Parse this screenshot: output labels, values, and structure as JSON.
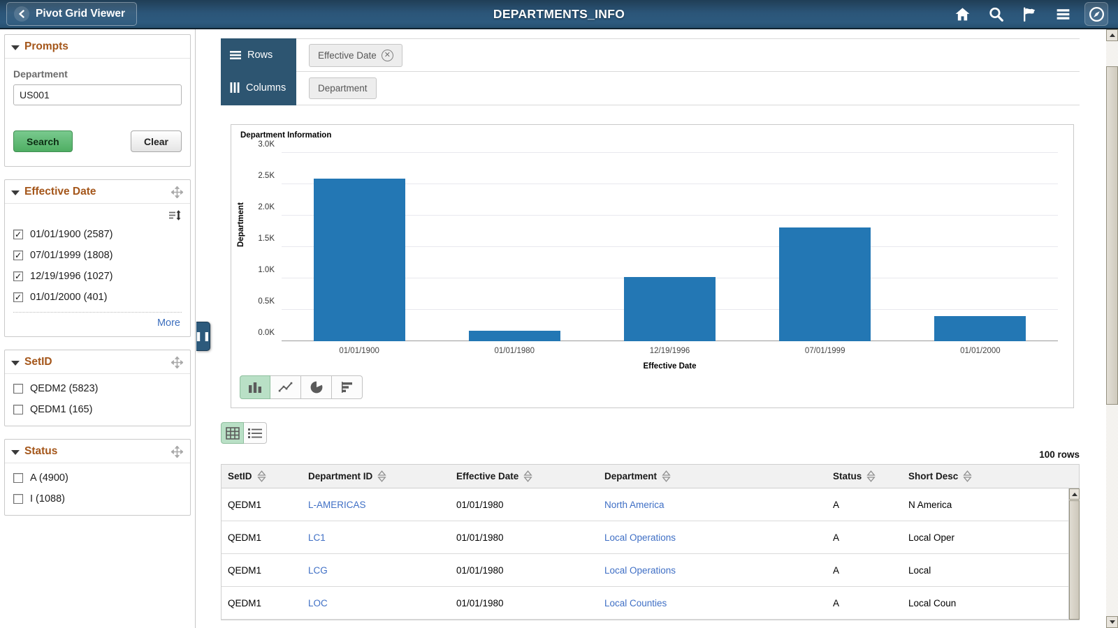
{
  "colors": {
    "bar": "#2377b4",
    "facet_title": "#a4561a",
    "link": "#3f6fc5",
    "header_bg": "#2b5578",
    "active_toggle": "#b9e0c6"
  },
  "header": {
    "back_label": "Pivot Grid Viewer",
    "title": "DEPARTMENTS_INFO",
    "icons": [
      "home-icon",
      "search-icon",
      "flag-icon",
      "menu-icon",
      "navbar-compass-icon"
    ]
  },
  "prompts": {
    "title": "Prompts",
    "field_label": "Department",
    "field_value": "US001",
    "search_label": "Search",
    "clear_label": "Clear"
  },
  "facets": [
    {
      "title": "Effective Date",
      "has_sort_icon": true,
      "items": [
        {
          "label": "01/01/1900 (2587)",
          "checked": true
        },
        {
          "label": "07/01/1999 (1808)",
          "checked": true
        },
        {
          "label": "12/19/1996 (1027)",
          "checked": true
        },
        {
          "label": "01/01/2000 (401)",
          "checked": true
        }
      ],
      "more_label": "More"
    },
    {
      "title": "SetID",
      "has_sort_icon": false,
      "items": [
        {
          "label": "QEDM2 (5823)",
          "checked": false
        },
        {
          "label": "QEDM1 (165)",
          "checked": false
        }
      ],
      "more_label": null
    },
    {
      "title": "Status",
      "has_sort_icon": false,
      "items": [
        {
          "label": "A (4900)",
          "checked": false
        },
        {
          "label": "I (1088)",
          "checked": false
        }
      ],
      "more_label": null
    }
  ],
  "pivot_axes": {
    "rows_label": "Rows",
    "columns_label": "Columns",
    "row_chips": [
      {
        "label": "Effective Date",
        "removable": true
      }
    ],
    "column_chips": [
      {
        "label": "Department",
        "removable": false
      }
    ]
  },
  "chart_data": {
    "type": "bar",
    "title": "Department Information",
    "categories": [
      "01/01/1900",
      "01/01/1980",
      "12/19/1996",
      "07/01/1999",
      "01/01/2000"
    ],
    "values": [
      2587,
      165,
      1027,
      1808,
      401
    ],
    "xlabel": "Effective Date",
    "ylabel": "Department",
    "ylim": [
      0,
      3000
    ],
    "ytick_step": 500,
    "ytick_labels": [
      "0.0K",
      "0.5K",
      "1.0K",
      "1.5K",
      "2.0K",
      "2.5K",
      "3.0K"
    ],
    "grid": true,
    "legend": false
  },
  "chart_type_buttons": [
    "bar-chart",
    "line-chart",
    "pie-chart",
    "horizontal-bar-chart"
  ],
  "view_toggle_buttons": [
    "grid-view",
    "list-view"
  ],
  "table": {
    "rows_count_label": "100 rows",
    "columns": [
      "SetID",
      "Department ID",
      "Effective Date",
      "Department",
      "Status",
      "Short Desc"
    ],
    "link_columns": [
      1,
      3
    ],
    "rows": [
      [
        "QEDM1",
        "L-AMERICAS",
        "01/01/1980",
        "North America",
        "A",
        "N America"
      ],
      [
        "QEDM1",
        "LC1",
        "01/01/1980",
        "Local Operations",
        "A",
        "Local Oper"
      ],
      [
        "QEDM1",
        "LCG",
        "01/01/1980",
        "Local Operations",
        "A",
        "Local"
      ],
      [
        "QEDM1",
        "LOC",
        "01/01/1980",
        "Local Counties",
        "A",
        "Local Coun"
      ]
    ]
  }
}
